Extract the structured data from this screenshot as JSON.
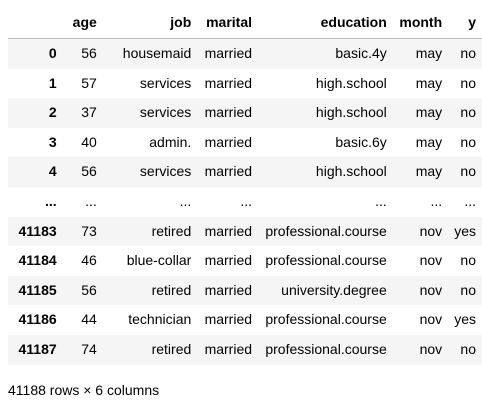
{
  "table": {
    "columns": [
      "age",
      "job",
      "marital",
      "education",
      "month",
      "y"
    ],
    "rows": [
      {
        "index": "0",
        "cells": [
          "56",
          "housemaid",
          "married",
          "basic.4y",
          "may",
          "no"
        ]
      },
      {
        "index": "1",
        "cells": [
          "57",
          "services",
          "married",
          "high.school",
          "may",
          "no"
        ]
      },
      {
        "index": "2",
        "cells": [
          "37",
          "services",
          "married",
          "high.school",
          "may",
          "no"
        ]
      },
      {
        "index": "3",
        "cells": [
          "40",
          "admin.",
          "married",
          "basic.6y",
          "may",
          "no"
        ]
      },
      {
        "index": "4",
        "cells": [
          "56",
          "services",
          "married",
          "high.school",
          "may",
          "no"
        ]
      },
      {
        "index": "...",
        "cells": [
          "...",
          "...",
          "...",
          "...",
          "...",
          "..."
        ]
      },
      {
        "index": "41183",
        "cells": [
          "73",
          "retired",
          "married",
          "professional.course",
          "nov",
          "yes"
        ]
      },
      {
        "index": "41184",
        "cells": [
          "46",
          "blue-collar",
          "married",
          "professional.course",
          "nov",
          "no"
        ]
      },
      {
        "index": "41185",
        "cells": [
          "56",
          "retired",
          "married",
          "university.degree",
          "nov",
          "no"
        ]
      },
      {
        "index": "41186",
        "cells": [
          "44",
          "technician",
          "married",
          "professional.course",
          "nov",
          "yes"
        ]
      },
      {
        "index": "41187",
        "cells": [
          "74",
          "retired",
          "married",
          "professional.course",
          "nov",
          "no"
        ]
      }
    ]
  },
  "shape_text": "41188 rows × 6 columns"
}
